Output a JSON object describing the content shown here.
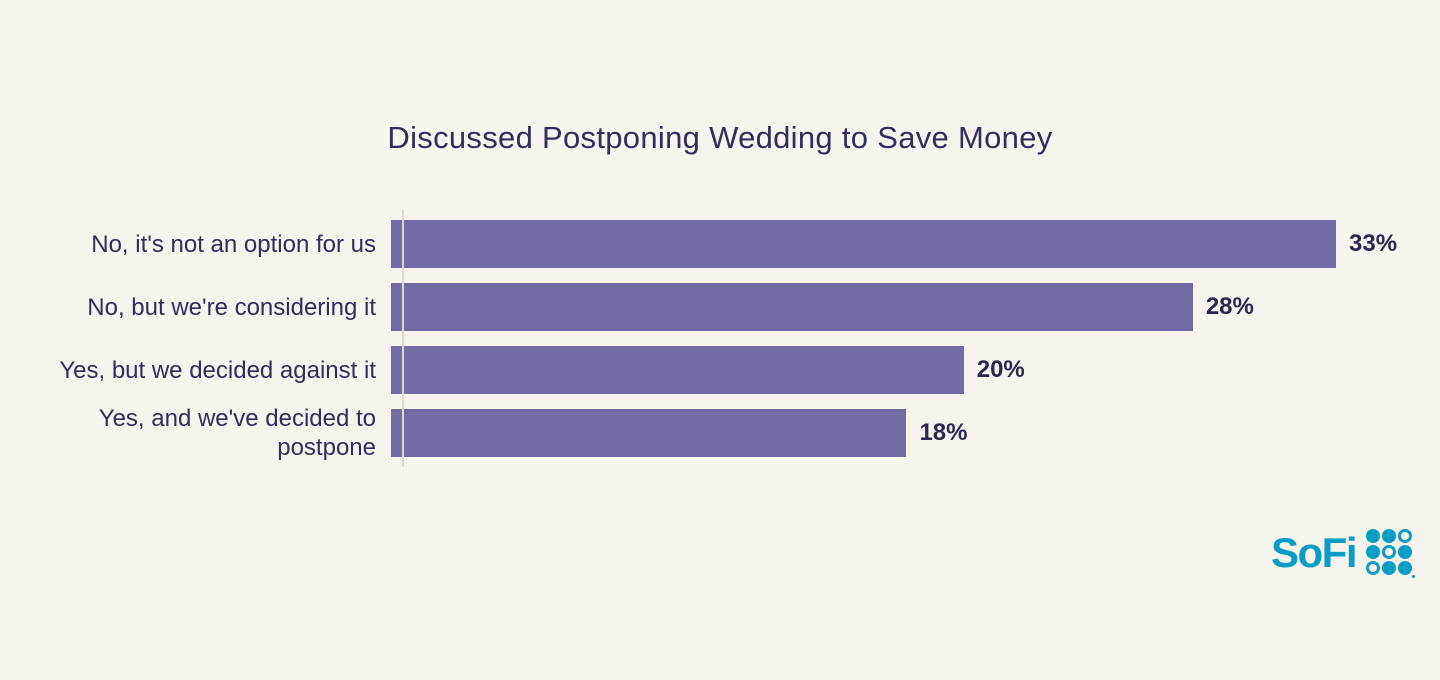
{
  "page": {
    "background": "#F7F4EE"
  },
  "chart_data": {
    "type": "bar",
    "orientation": "horizontal",
    "title": "Discussed Postponing Wedding to Save Money",
    "categories": [
      "No, it's not an option for us",
      "No, but we're considering it",
      "Yes, but we decided against it",
      "Yes, and we've decided to postpone"
    ],
    "values": [
      33,
      28,
      20,
      18
    ],
    "value_labels": [
      "33%",
      "28%",
      "20%",
      "18%"
    ],
    "xlim": [
      0,
      33
    ],
    "bar_color": "#736CA4",
    "title_color": "#332D59",
    "category_label_color": "#332D59",
    "value_label_color": "#2B2750",
    "axis_line_color": "#DBD8D1",
    "grid": false,
    "legend": false
  },
  "branding": {
    "logo_text": "SoFi",
    "logo_color": "#0A9DC4",
    "logo_dot_pattern": [
      [
        "filled",
        "filled",
        "ring"
      ],
      [
        "filled",
        "ring",
        "filled"
      ],
      [
        "ring",
        "filled",
        "filled"
      ]
    ]
  }
}
